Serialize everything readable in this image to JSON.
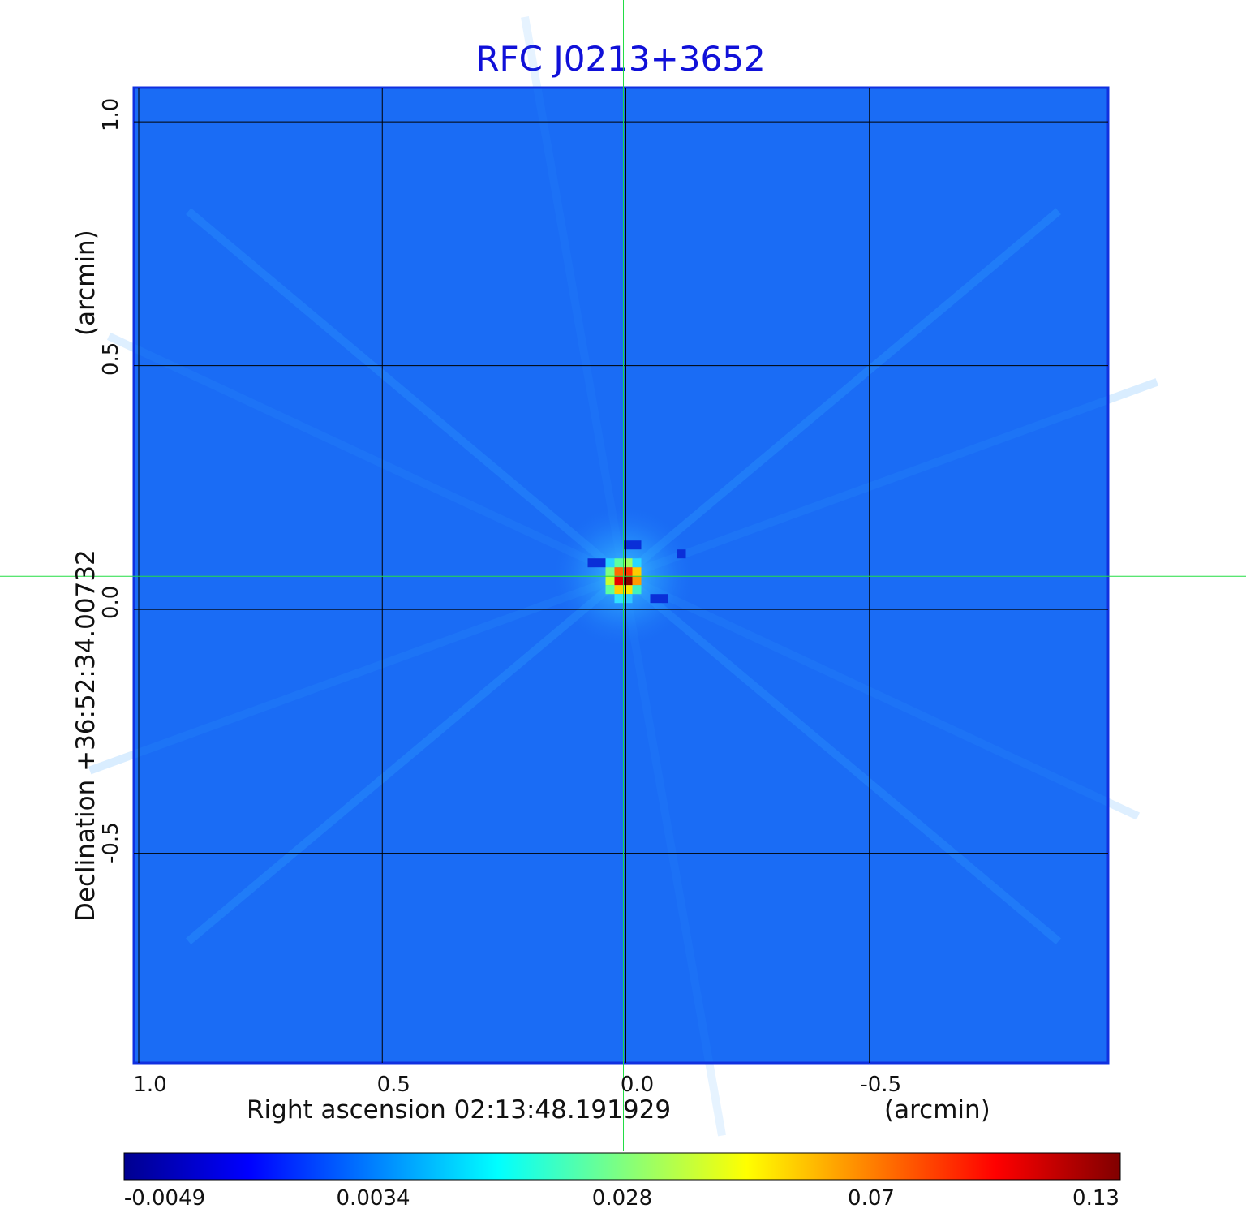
{
  "chart_data": {
    "type": "heatmap",
    "title": "RFC J0213+3652",
    "xlabel": "Right ascension  02:13:48.191929",
    "xunit": "(arcmin)",
    "ylabel": "Declination  +36:52:34.00732",
    "yunit": "(arcmin)",
    "x_ticks": [
      "1.0",
      "0.5",
      "0.0",
      "-0.5"
    ],
    "x_tick_values": [
      1.0,
      0.5,
      0.0,
      -0.5
    ],
    "y_ticks": [
      "1.0",
      "0.5",
      "0.0",
      "-0.5"
    ],
    "y_tick_values": [
      1.0,
      0.5,
      0.0,
      -0.5
    ],
    "xlim": [
      1.01,
      -0.99
    ],
    "ylim": [
      -0.93,
      1.07
    ],
    "grid": true,
    "crosshair": {
      "x": 0.005,
      "y": 0.068,
      "color": "#22dd44"
    },
    "source": {
      "x": 0.005,
      "y": 0.068,
      "peak": 0.13
    },
    "colorbar": {
      "colormap": "jet",
      "tick_labels": [
        "-0.0049",
        "0.0034",
        "0.028",
        "0.07",
        "0.13"
      ],
      "min": -0.0049,
      "max": 0.13
    },
    "colors": {
      "title": "#1010d8",
      "background_map": "#1a6cf5",
      "frame": "#1030e0",
      "grid": "#000000"
    }
  }
}
